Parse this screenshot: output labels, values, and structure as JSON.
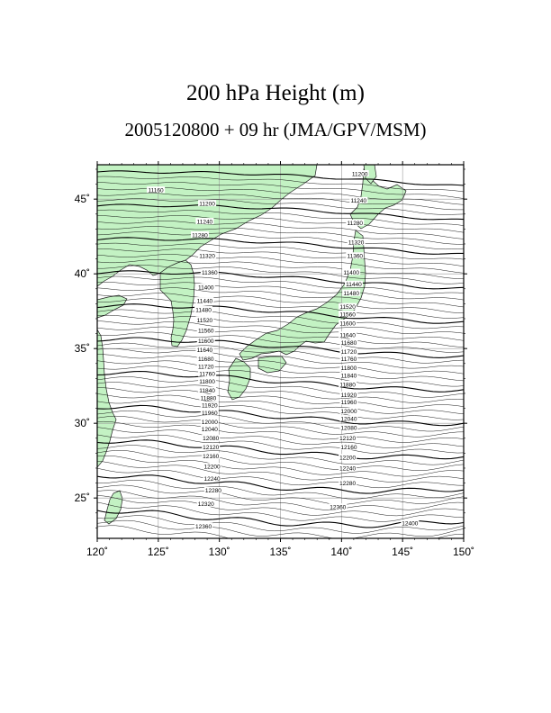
{
  "title": "200 hPa Height (m)",
  "subtitle": "2005120800 + 09 hr (JMA/GPV/MSM)",
  "colors": {
    "land": "#c3f2c3",
    "coast": "#1d1d1d",
    "contour": "#000000",
    "grid": "#9a9a9a",
    "background": "#ffffff"
  },
  "map": {
    "lon_range": [
      120,
      150
    ],
    "lat_range": [
      22.3,
      47.3
    ],
    "lon_ticks": [
      120,
      125,
      130,
      135,
      140,
      145,
      150
    ],
    "lat_ticks": [
      25,
      30,
      35,
      40,
      45
    ],
    "lon_tick_labels": [
      "120˚",
      "125˚",
      "130˚",
      "135˚",
      "140˚",
      "145˚",
      "150˚"
    ],
    "lat_tick_labels": [
      "25˚",
      "30˚",
      "35˚",
      "40˚",
      "45˚"
    ],
    "contour_interval_m": 20,
    "contour_range_m": [
      11160,
      12420
    ],
    "labeled_contours": [
      {
        "value": "11160",
        "lon": 124.8,
        "lat": 45.6
      },
      {
        "value": "11200",
        "lon": 129.0,
        "lat": 44.7
      },
      {
        "value": "11240",
        "lon": 128.8,
        "lat": 43.5
      },
      {
        "value": "11280",
        "lon": 128.4,
        "lat": 42.6
      },
      {
        "value": "11320",
        "lon": 129.0,
        "lat": 41.2
      },
      {
        "value": "11360",
        "lon": 129.2,
        "lat": 40.1
      },
      {
        "value": "11400",
        "lon": 128.9,
        "lat": 39.1
      },
      {
        "value": "11440",
        "lon": 128.8,
        "lat": 38.2
      },
      {
        "value": "11480",
        "lon": 128.7,
        "lat": 37.6
      },
      {
        "value": "11520",
        "lon": 128.8,
        "lat": 36.9
      },
      {
        "value": "11560",
        "lon": 128.9,
        "lat": 36.2
      },
      {
        "value": "11600",
        "lon": 128.9,
        "lat": 35.5
      },
      {
        "value": "11640",
        "lon": 128.8,
        "lat": 34.9
      },
      {
        "value": "11680",
        "lon": 128.9,
        "lat": 34.3
      },
      {
        "value": "11720",
        "lon": 128.9,
        "lat": 33.8
      },
      {
        "value": "11760",
        "lon": 129.0,
        "lat": 33.3
      },
      {
        "value": "11800",
        "lon": 129.0,
        "lat": 32.8
      },
      {
        "value": "11840",
        "lon": 129.0,
        "lat": 32.2
      },
      {
        "value": "11880",
        "lon": 129.1,
        "lat": 31.7
      },
      {
        "value": "11920",
        "lon": 129.2,
        "lat": 31.2
      },
      {
        "value": "11960",
        "lon": 129.2,
        "lat": 30.7
      },
      {
        "value": "12000",
        "lon": 129.2,
        "lat": 30.1
      },
      {
        "value": "12040",
        "lon": 129.2,
        "lat": 29.6
      },
      {
        "value": "12080",
        "lon": 129.3,
        "lat": 29.0
      },
      {
        "value": "12120",
        "lon": 129.3,
        "lat": 28.4
      },
      {
        "value": "12160",
        "lon": 129.3,
        "lat": 27.8
      },
      {
        "value": "12200",
        "lon": 129.4,
        "lat": 27.1
      },
      {
        "value": "12240",
        "lon": 129.4,
        "lat": 26.3
      },
      {
        "value": "12280",
        "lon": 129.5,
        "lat": 25.5
      },
      {
        "value": "12320",
        "lon": 128.9,
        "lat": 24.6
      },
      {
        "value": "12360",
        "lon": 128.7,
        "lat": 23.1
      },
      {
        "value": "11200",
        "lon": 141.5,
        "lat": 46.7
      },
      {
        "value": "11240",
        "lon": 141.4,
        "lat": 44.9
      },
      {
        "value": "11280",
        "lon": 141.1,
        "lat": 43.4
      },
      {
        "value": "11320",
        "lon": 141.2,
        "lat": 42.1
      },
      {
        "value": "11360",
        "lon": 141.1,
        "lat": 41.2
      },
      {
        "value": "11400",
        "lon": 140.8,
        "lat": 40.1
      },
      {
        "value": "11440",
        "lon": 141.0,
        "lat": 39.3
      },
      {
        "value": "11480",
        "lon": 140.8,
        "lat": 38.7
      },
      {
        "value": "11520",
        "lon": 140.5,
        "lat": 37.8
      },
      {
        "value": "11560",
        "lon": 140.5,
        "lat": 37.3
      },
      {
        "value": "11600",
        "lon": 140.5,
        "lat": 36.7
      },
      {
        "value": "11640",
        "lon": 140.5,
        "lat": 35.9
      },
      {
        "value": "11680",
        "lon": 140.6,
        "lat": 35.4
      },
      {
        "value": "11720",
        "lon": 140.6,
        "lat": 34.8
      },
      {
        "value": "11760",
        "lon": 140.6,
        "lat": 34.3
      },
      {
        "value": "11800",
        "lon": 140.6,
        "lat": 33.7
      },
      {
        "value": "11840",
        "lon": 140.6,
        "lat": 33.2
      },
      {
        "value": "11880",
        "lon": 140.5,
        "lat": 32.6
      },
      {
        "value": "11920",
        "lon": 140.6,
        "lat": 31.9
      },
      {
        "value": "11960",
        "lon": 140.6,
        "lat": 31.4
      },
      {
        "value": "12000",
        "lon": 140.6,
        "lat": 30.8
      },
      {
        "value": "12040",
        "lon": 140.6,
        "lat": 30.3
      },
      {
        "value": "12080",
        "lon": 140.6,
        "lat": 29.7
      },
      {
        "value": "12120",
        "lon": 140.5,
        "lat": 29.0
      },
      {
        "value": "12160",
        "lon": 140.6,
        "lat": 28.4
      },
      {
        "value": "12200",
        "lon": 140.5,
        "lat": 27.7
      },
      {
        "value": "12240",
        "lon": 140.5,
        "lat": 27.0
      },
      {
        "value": "12280",
        "lon": 140.5,
        "lat": 26.0
      },
      {
        "value": "12360",
        "lon": 139.7,
        "lat": 24.4
      },
      {
        "value": "12400",
        "lon": 145.6,
        "lat": 23.3
      }
    ]
  }
}
